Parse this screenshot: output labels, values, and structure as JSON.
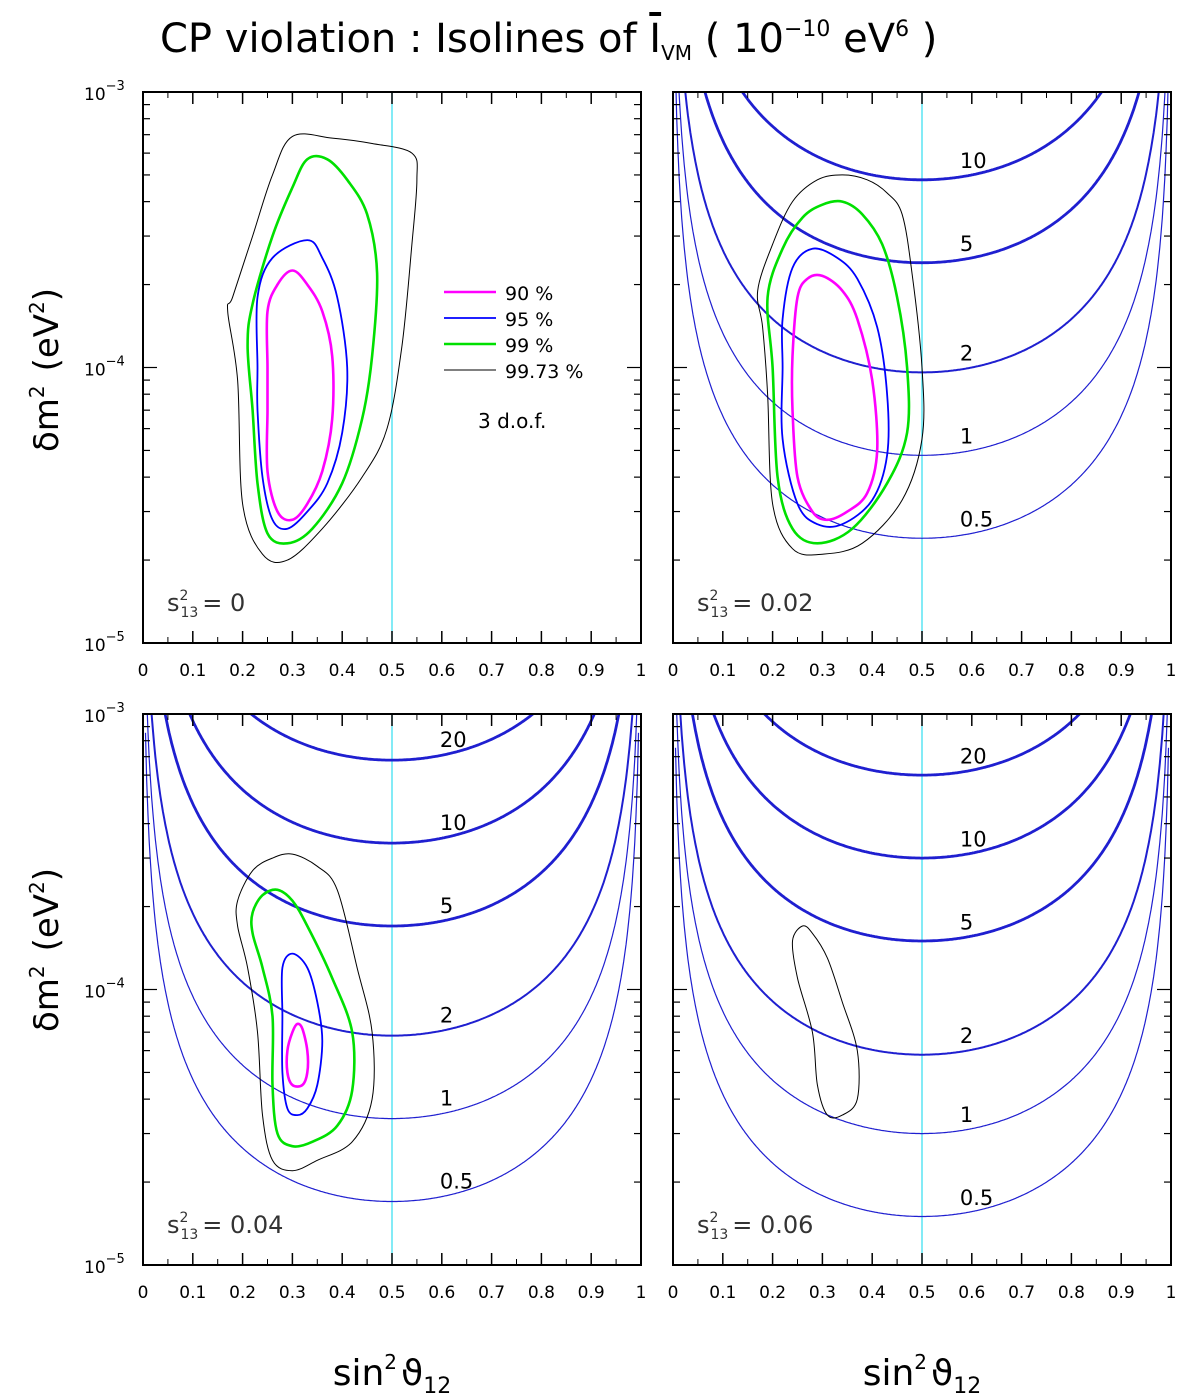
{
  "title": {
    "prefix": "CP violation : Isolines of ",
    "symbol": "I",
    "subscript": "VM",
    "units_open": " ( 10",
    "units_exp": "−10",
    "units_mid": " eV",
    "units_exp2": "6",
    "units_close": " )"
  },
  "axis": {
    "xlabel_base": "sin",
    "xlabel_sup": "2",
    "xlabel_theta": "ϑ",
    "xlabel_sub": "12",
    "ylabel_base": "δm",
    "ylabel_sup": "2",
    "ylabel_unit_open": "(eV",
    "ylabel_unit_sup": "2",
    "ylabel_unit_close": ")",
    "x_ticks": [
      "0",
      "0.1",
      "0.2",
      "0.3",
      "0.4",
      "0.5",
      "0.6",
      "0.7",
      "0.8",
      "0.9",
      "1"
    ],
    "y_tick_top": {
      "base": "10",
      "exp": "−3"
    },
    "y_tick_mid": {
      "base": "10",
      "exp": "−4"
    },
    "y_tick_bot": {
      "base": "10",
      "exp": "−5"
    }
  },
  "legend": {
    "items": [
      {
        "label": "90 %",
        "color": "#ff00ff"
      },
      {
        "label": "95 %",
        "color": "#0000ff"
      },
      {
        "label": "99 %",
        "color": "#00e000"
      },
      {
        "label": "99.73 %",
        "color": "#000000"
      }
    ],
    "note": "3 d.o.f."
  },
  "colors": {
    "isoline": "#1f1fd0",
    "vline": "#40e0f0",
    "c90": "#ff00ff",
    "c95": "#0000ff",
    "c99": "#00e000",
    "c9973": "#000000"
  },
  "chart_data": [
    {
      "type": "line",
      "panel": "top-left",
      "s13_label": {
        "base": "s",
        "sup": "2",
        "sub": "13",
        "value": "= 0"
      },
      "xlim": [
        0,
        1
      ],
      "ylim": [
        1e-05,
        0.001
      ],
      "yscale": "log",
      "vline_x": 0.5,
      "isolines": [],
      "contours": {
        "c90": [
          [
            0.25,
            0.0001
          ],
          [
            0.25,
            0.00016
          ],
          [
            0.27,
            0.0002
          ],
          [
            0.3,
            0.000225
          ],
          [
            0.33,
            0.0002
          ],
          [
            0.36,
            0.00016
          ],
          [
            0.38,
            0.00011
          ],
          [
            0.38,
            6.5e-05
          ],
          [
            0.36,
            4.2e-05
          ],
          [
            0.33,
            3.2e-05
          ],
          [
            0.3,
            2.8e-05
          ],
          [
            0.27,
            3e-05
          ],
          [
            0.25,
            4.2e-05
          ],
          [
            0.25,
            7e-05
          ]
        ],
        "c95": [
          [
            0.23,
            0.0001
          ],
          [
            0.23,
            0.00018
          ],
          [
            0.26,
            0.00025
          ],
          [
            0.33,
            0.00029
          ],
          [
            0.36,
            0.00025
          ],
          [
            0.39,
            0.00018
          ],
          [
            0.41,
            0.0001
          ],
          [
            0.4,
            5.8e-05
          ],
          [
            0.37,
            3.8e-05
          ],
          [
            0.33,
            3e-05
          ],
          [
            0.29,
            2.6e-05
          ],
          [
            0.26,
            2.8e-05
          ],
          [
            0.24,
            4e-05
          ],
          [
            0.23,
            7e-05
          ]
        ],
        "c99": [
          [
            0.22,
            0.00017
          ],
          [
            0.26,
            0.0003
          ],
          [
            0.3,
            0.00045
          ],
          [
            0.33,
            0.00057
          ],
          [
            0.37,
            0.00057
          ],
          [
            0.41,
            0.00048
          ],
          [
            0.45,
            0.00036
          ],
          [
            0.47,
            0.00022
          ],
          [
            0.46,
            0.00011
          ],
          [
            0.44,
            6.5e-05
          ],
          [
            0.4,
            3.8e-05
          ],
          [
            0.34,
            2.6e-05
          ],
          [
            0.29,
            2.3e-05
          ],
          [
            0.25,
            2.5e-05
          ],
          [
            0.23,
            3.8e-05
          ],
          [
            0.22,
            7e-05
          ],
          [
            0.21,
            0.00012
          ]
        ],
        "c9973": [
          [
            0.18,
            0.00018
          ],
          [
            0.22,
            0.0003
          ],
          [
            0.26,
            0.0005
          ],
          [
            0.3,
            0.00069
          ],
          [
            0.38,
            0.00068
          ],
          [
            0.46,
            0.00065
          ],
          [
            0.54,
            0.0006
          ],
          [
            0.55,
            0.00048
          ],
          [
            0.54,
            0.00028
          ],
          [
            0.52,
            0.00012
          ],
          [
            0.49,
            6e-05
          ],
          [
            0.44,
            4e-05
          ],
          [
            0.36,
            2.6e-05
          ],
          [
            0.29,
            2e-05
          ],
          [
            0.24,
            2.1e-05
          ],
          [
            0.2,
            3.2e-05
          ],
          [
            0.19,
            9e-05
          ],
          [
            0.17,
            0.00016
          ]
        ]
      }
    },
    {
      "type": "line",
      "panel": "top-right",
      "s13_label": {
        "base": "s",
        "sup": "2",
        "sub": "13",
        "value": "= 0.02"
      },
      "xlim": [
        0,
        1
      ],
      "ylim": [
        1e-05,
        0.001
      ],
      "yscale": "log",
      "vline_x": 0.5,
      "isolines": [
        {
          "value": 0.5,
          "label": "0.5",
          "min_y": 2.4e-05,
          "label_x": 0.56
        },
        {
          "value": 1,
          "label": "1",
          "min_y": 4.8e-05,
          "label_x": 0.56
        },
        {
          "value": 2,
          "label": "2",
          "min_y": 9.6e-05,
          "label_x": 0.56
        },
        {
          "value": 5,
          "label": "5",
          "min_y": 0.00024,
          "label_x": 0.56
        },
        {
          "value": 10,
          "label": "10",
          "min_y": 0.00048,
          "label_x": 0.56
        }
      ],
      "contours": {
        "c90": [
          [
            0.24,
            0.00011
          ],
          [
            0.25,
            0.00018
          ],
          [
            0.27,
            0.00021
          ],
          [
            0.3,
            0.000215
          ],
          [
            0.34,
            0.00019
          ],
          [
            0.37,
            0.00015
          ],
          [
            0.4,
            9e-05
          ],
          [
            0.41,
            5e-05
          ],
          [
            0.39,
            3.5e-05
          ],
          [
            0.35,
            3e-05
          ],
          [
            0.31,
            2.8e-05
          ],
          [
            0.28,
            3e-05
          ],
          [
            0.25,
            4e-05
          ],
          [
            0.24,
            7e-05
          ]
        ],
        "c95": [
          [
            0.22,
            0.00015
          ],
          [
            0.24,
            0.00023
          ],
          [
            0.28,
            0.00027
          ],
          [
            0.33,
            0.00025
          ],
          [
            0.37,
            0.00021
          ],
          [
            0.41,
            0.00014
          ],
          [
            0.43,
            8e-05
          ],
          [
            0.43,
            4.8e-05
          ],
          [
            0.4,
            3.3e-05
          ],
          [
            0.34,
            2.7e-05
          ],
          [
            0.29,
            2.7e-05
          ],
          [
            0.25,
            3.2e-05
          ],
          [
            0.22,
            5.5e-05
          ],
          [
            0.22,
            0.0001
          ]
        ],
        "c99": [
          [
            0.19,
            0.00018
          ],
          [
            0.22,
            0.00027
          ],
          [
            0.26,
            0.00035
          ],
          [
            0.3,
            0.00039
          ],
          [
            0.34,
            0.0004
          ],
          [
            0.38,
            0.00036
          ],
          [
            0.42,
            0.00028
          ],
          [
            0.45,
            0.00018
          ],
          [
            0.47,
            0.0001
          ],
          [
            0.47,
            5.8e-05
          ],
          [
            0.43,
            3.8e-05
          ],
          [
            0.36,
            2.6e-05
          ],
          [
            0.29,
            2.3e-05
          ],
          [
            0.24,
            2.6e-05
          ],
          [
            0.21,
            4e-05
          ],
          [
            0.2,
            0.0001
          ]
        ],
        "c9973": [
          [
            0.17,
            0.00019
          ],
          [
            0.2,
            0.00028
          ],
          [
            0.24,
            0.0004
          ],
          [
            0.29,
            0.00048
          ],
          [
            0.34,
            0.0005
          ],
          [
            0.39,
            0.00048
          ],
          [
            0.43,
            0.00043
          ],
          [
            0.46,
            0.00036
          ],
          [
            0.48,
            0.00022
          ],
          [
            0.5,
            0.0001
          ],
          [
            0.5,
            5.5e-05
          ],
          [
            0.46,
            3.3e-05
          ],
          [
            0.38,
            2.3e-05
          ],
          [
            0.3,
            2.1e-05
          ],
          [
            0.24,
            2.2e-05
          ],
          [
            0.2,
            3.2e-05
          ],
          [
            0.19,
            8e-05
          ],
          [
            0.18,
            0.00014
          ]
        ]
      }
    },
    {
      "type": "line",
      "panel": "bottom-left",
      "s13_label": {
        "base": "s",
        "sup": "2",
        "sub": "13",
        "value": "= 0.04"
      },
      "xlim": [
        0,
        1
      ],
      "ylim": [
        1e-05,
        0.001
      ],
      "yscale": "log",
      "vline_x": 0.5,
      "isolines": [
        {
          "value": 0.5,
          "label": "0.5",
          "min_y": 1.7e-05,
          "label_x": 0.58
        },
        {
          "value": 1,
          "label": "1",
          "min_y": 3.4e-05,
          "label_x": 0.58
        },
        {
          "value": 2,
          "label": "2",
          "min_y": 6.8e-05,
          "label_x": 0.58
        },
        {
          "value": 5,
          "label": "5",
          "min_y": 0.00017,
          "label_x": 0.58
        },
        {
          "value": 10,
          "label": "10",
          "min_y": 0.00034,
          "label_x": 0.58
        },
        {
          "value": 20,
          "label": "20",
          "min_y": 0.00068,
          "label_x": 0.58
        }
      ],
      "contours": {
        "c90": [
          [
            0.3,
            7e-05
          ],
          [
            0.31,
            7.5e-05
          ],
          [
            0.32,
            7.2e-05
          ],
          [
            0.33,
            6e-05
          ],
          [
            0.33,
            5e-05
          ],
          [
            0.32,
            4.5e-05
          ],
          [
            0.3,
            4.5e-05
          ],
          [
            0.29,
            5e-05
          ],
          [
            0.29,
            6e-05
          ]
        ],
        "c95": [
          [
            0.28,
            0.00012
          ],
          [
            0.3,
            0.000135
          ],
          [
            0.33,
            0.00012
          ],
          [
            0.35,
            9e-05
          ],
          [
            0.36,
            6.5e-05
          ],
          [
            0.35,
            4.5e-05
          ],
          [
            0.33,
            3.7e-05
          ],
          [
            0.31,
            3.5e-05
          ],
          [
            0.29,
            3.7e-05
          ],
          [
            0.28,
            5e-05
          ],
          [
            0.28,
            8e-05
          ]
        ],
        "c99": [
          [
            0.22,
            0.00019
          ],
          [
            0.24,
            0.00022
          ],
          [
            0.27,
            0.00023
          ],
          [
            0.3,
            0.00021
          ],
          [
            0.33,
            0.00017
          ],
          [
            0.38,
            0.00011
          ],
          [
            0.42,
            7e-05
          ],
          [
            0.42,
            4.3e-05
          ],
          [
            0.39,
            3.2e-05
          ],
          [
            0.34,
            2.8e-05
          ],
          [
            0.3,
            2.7e-05
          ],
          [
            0.27,
            3e-05
          ],
          [
            0.26,
            4.5e-05
          ],
          [
            0.26,
            8e-05
          ],
          [
            0.24,
            0.00012
          ],
          [
            0.22,
            0.00016
          ]
        ],
        "c9973": [
          [
            0.19,
            0.00021
          ],
          [
            0.22,
            0.00027
          ],
          [
            0.26,
            0.0003
          ],
          [
            0.3,
            0.00031
          ],
          [
            0.35,
            0.00028
          ],
          [
            0.39,
            0.00023
          ],
          [
            0.43,
            0.00012
          ],
          [
            0.46,
            7e-05
          ],
          [
            0.46,
            4e-05
          ],
          [
            0.42,
            2.8e-05
          ],
          [
            0.35,
            2.4e-05
          ],
          [
            0.3,
            2.2e-05
          ],
          [
            0.26,
            2.4e-05
          ],
          [
            0.24,
            3.5e-05
          ],
          [
            0.23,
            7e-05
          ],
          [
            0.21,
            0.00012
          ],
          [
            0.19,
            0.00017
          ]
        ]
      }
    },
    {
      "type": "line",
      "panel": "bottom-right",
      "s13_label": {
        "base": "s",
        "sup": "2",
        "sub": "13",
        "value": "= 0.06"
      },
      "xlim": [
        0,
        1
      ],
      "ylim": [
        1e-05,
        0.001
      ],
      "yscale": "log",
      "vline_x": 0.5,
      "isolines": [
        {
          "value": 0.5,
          "label": "0.5",
          "min_y": 1.5e-05,
          "label_x": 0.56
        },
        {
          "value": 1,
          "label": "1",
          "min_y": 3e-05,
          "label_x": 0.56
        },
        {
          "value": 2,
          "label": "2",
          "min_y": 5.8e-05,
          "label_x": 0.56
        },
        {
          "value": 5,
          "label": "5",
          "min_y": 0.00015,
          "label_x": 0.56
        },
        {
          "value": 10,
          "label": "10",
          "min_y": 0.0003,
          "label_x": 0.56
        },
        {
          "value": 20,
          "label": "20",
          "min_y": 0.0006,
          "label_x": 0.56
        }
      ],
      "contours": {
        "c90": [],
        "c95": [],
        "c99": [],
        "c9973": [
          [
            0.24,
            0.00015
          ],
          [
            0.26,
            0.00017
          ],
          [
            0.28,
            0.00016
          ],
          [
            0.31,
            0.00013
          ],
          [
            0.34,
            9e-05
          ],
          [
            0.37,
            6e-05
          ],
          [
            0.37,
            4e-05
          ],
          [
            0.34,
            3.5e-05
          ],
          [
            0.31,
            3.5e-05
          ],
          [
            0.29,
            4.5e-05
          ],
          [
            0.28,
            7e-05
          ],
          [
            0.25,
            0.00011
          ]
        ]
      }
    }
  ]
}
